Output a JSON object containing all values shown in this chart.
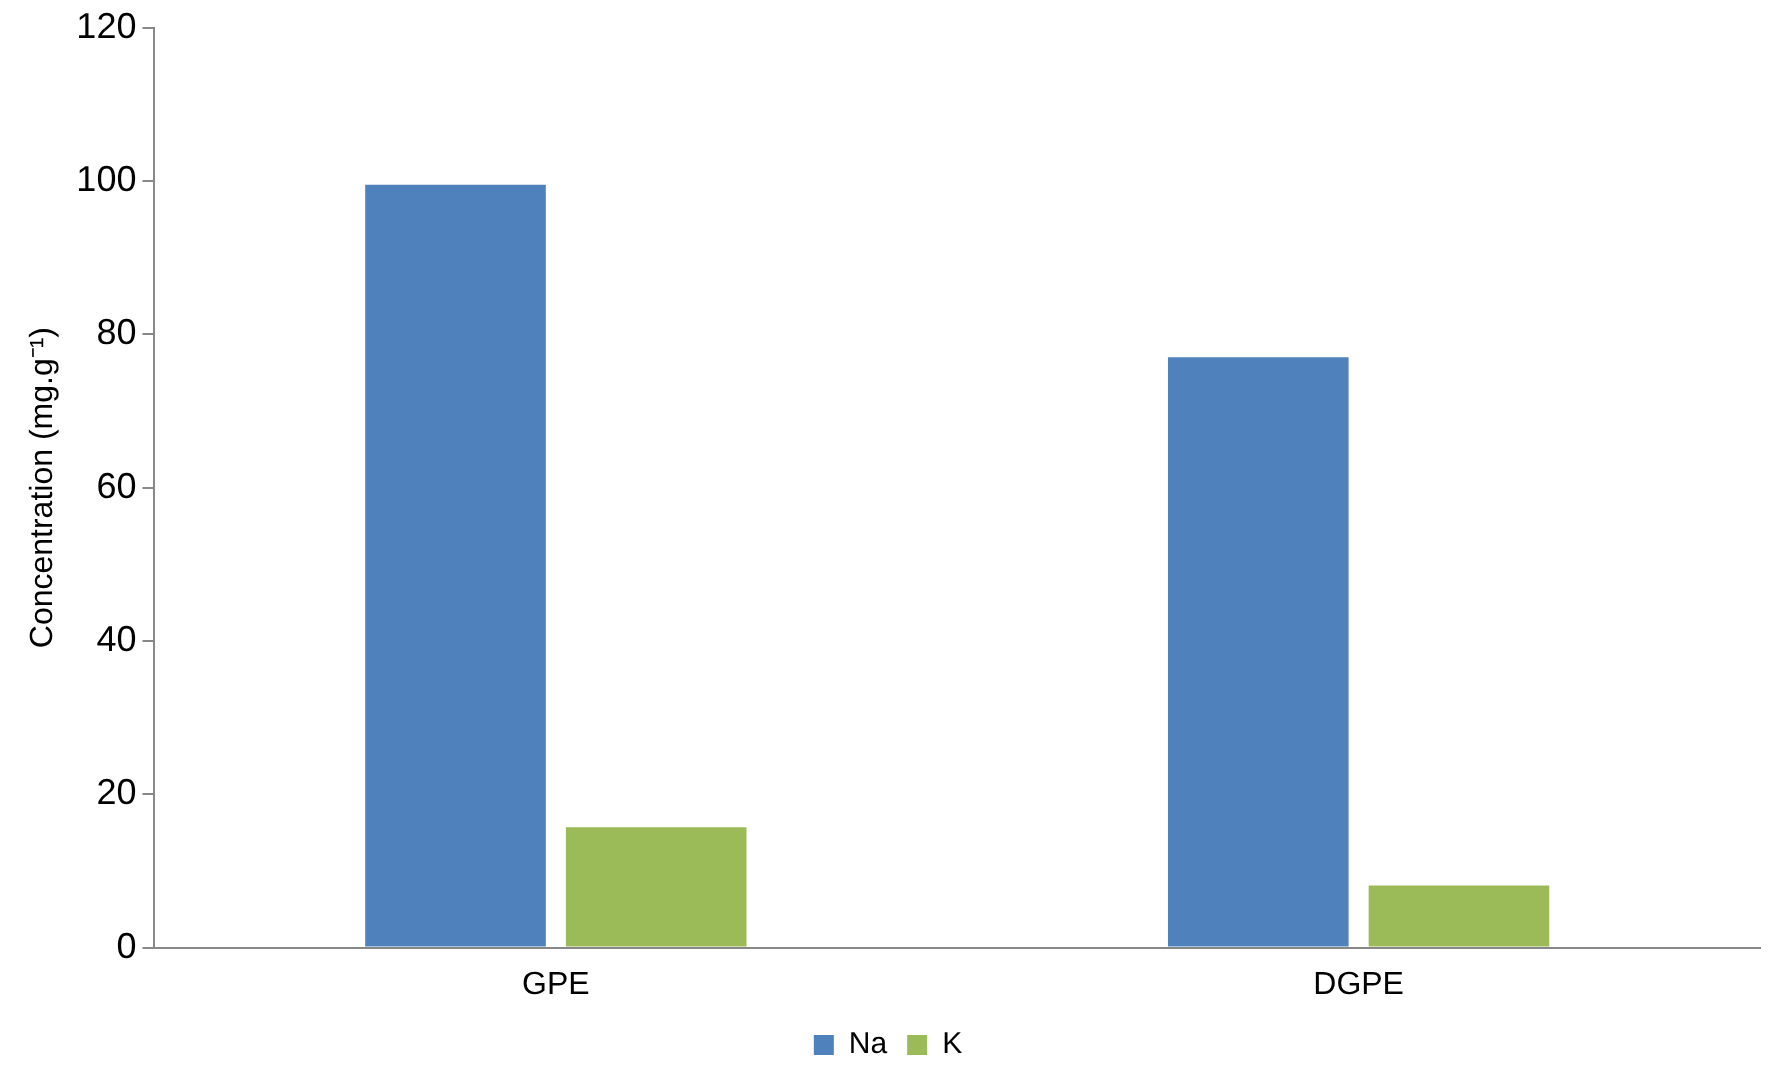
{
  "chart_data": {
    "type": "bar",
    "ylabel": "Concentration (mg.g⁻¹)",
    "categories": [
      "GPE",
      "DGPE"
    ],
    "series": [
      {
        "name": "Na",
        "color": "#4f81bd",
        "values": [
          99.5,
          77
        ]
      },
      {
        "name": "K",
        "color": "#9bbb59",
        "values": [
          15.7,
          8.1
        ]
      }
    ],
    "ylim": [
      0,
      120
    ],
    "yticks": [
      0,
      20,
      40,
      60,
      80,
      100,
      120
    ],
    "grid": false,
    "legend": "bottom"
  }
}
